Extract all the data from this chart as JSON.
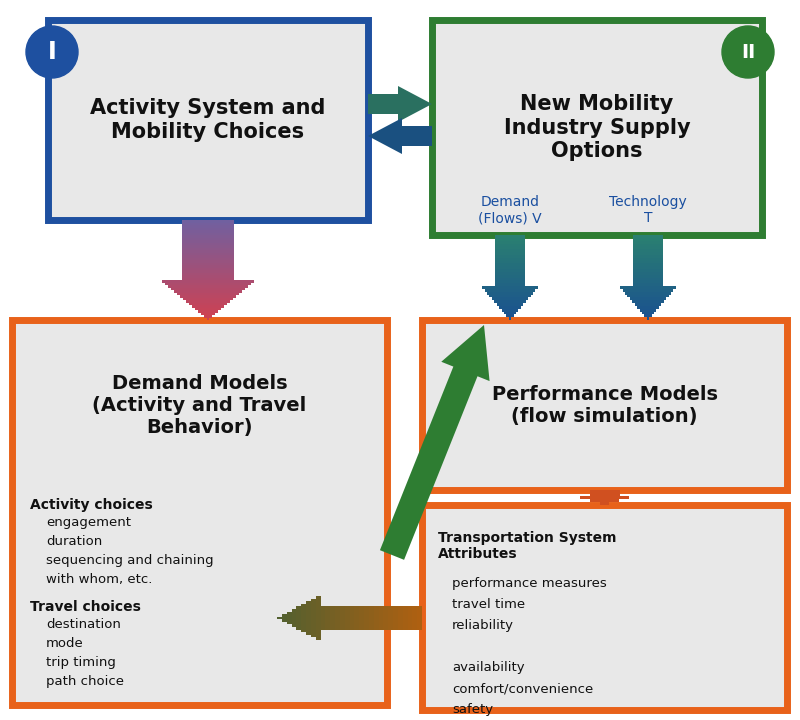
{
  "bg_color": "#ffffff",
  "box_fill": "#e8e8e8",
  "box1_border": "#1e50a0",
  "box2_border": "#2e7d32",
  "box34_border": "#e8621a",
  "circle1_color": "#1e50a0",
  "circle2_color": "#2e7d32",
  "text_dark": "#111111",
  "text_blue_label": "#1a4fa0",
  "title1": "Activity System and\nMobility Choices",
  "title2": "New Mobility\nIndustry Supply\nOptions",
  "title3": "Demand Models\n(Activity and Travel\nBehavior)",
  "title4": "Performance Models\n(flow simulation)",
  "demand_label": "Demand\n(Flows) V",
  "tech_label": "Technology\nT",
  "activity_bold": "Activity choices",
  "activity_items": [
    "engagement",
    "duration",
    "sequencing and chaining",
    "with whom, etc."
  ],
  "travel_bold": "Travel choices",
  "travel_items": [
    "destination",
    "mode",
    "trip timing",
    "path choice"
  ],
  "ts_bold": "Transportation System\nAttributes",
  "ts_items": [
    "performance measures",
    "travel time",
    "reliability",
    "",
    "availability",
    "comfort/convenience",
    "safety"
  ],
  "b1": [
    48,
    20,
    320,
    200
  ],
  "b2": [
    432,
    20,
    330,
    215
  ],
  "b3": [
    12,
    320,
    375,
    385
  ],
  "b4": [
    422,
    320,
    365,
    170
  ],
  "b5": [
    422,
    505,
    365,
    205
  ]
}
